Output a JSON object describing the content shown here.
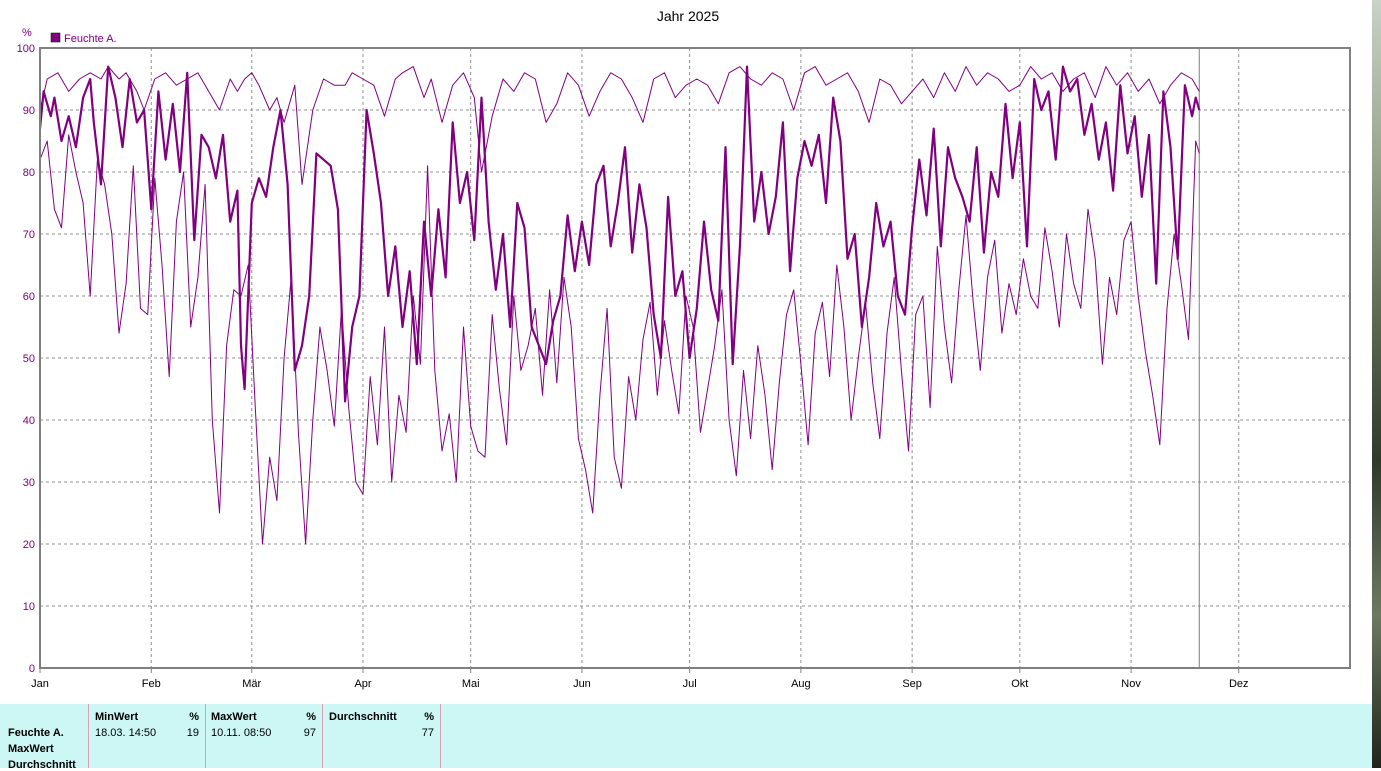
{
  "chart_data": {
    "type": "line",
    "title": "Jahr 2025",
    "ylabel": "%",
    "ylim": [
      0,
      100
    ],
    "yticks": [
      0,
      10,
      20,
      30,
      40,
      50,
      60,
      70,
      80,
      90,
      100
    ],
    "x_range_days": [
      0,
      365
    ],
    "x_months": [
      "Jan",
      "Feb",
      "Mär",
      "Apr",
      "Mai",
      "Jun",
      "Jul",
      "Aug",
      "Sep",
      "Okt",
      "Nov",
      "Dez"
    ],
    "current_date_day": 323,
    "grid": true,
    "legend": [
      {
        "name": "Feuchte A.",
        "color": "#800080"
      }
    ],
    "legend_position": "top-left",
    "series": [
      {
        "name": "max",
        "color": "#800080",
        "width": 1,
        "x": [
          0,
          2,
          5,
          8,
          11,
          14,
          17,
          19,
          22,
          24,
          27,
          29,
          32,
          35,
          38,
          41,
          44,
          47,
          50,
          53,
          55,
          57,
          59,
          61,
          64,
          66,
          68,
          71,
          73,
          76,
          79,
          82,
          85,
          87,
          90,
          93,
          96,
          99,
          101,
          104,
          107,
          109,
          112,
          115,
          118,
          121,
          123,
          126,
          129,
          132,
          135,
          138,
          141,
          144,
          147,
          150,
          153,
          156,
          159,
          162,
          165,
          168,
          171,
          174,
          177,
          180,
          183,
          186,
          189,
          192,
          195,
          198,
          201,
          204,
          207,
          210,
          213,
          216,
          219,
          222,
          225,
          228,
          231,
          234,
          237,
          240,
          243,
          246,
          249,
          252,
          255,
          258,
          261,
          264,
          267,
          270,
          273,
          276,
          279,
          282,
          285,
          288,
          291,
          294,
          297,
          300,
          303,
          306,
          309,
          312,
          315,
          318,
          321,
          323
        ],
        "y": [
          90,
          95,
          96,
          93,
          95,
          96,
          95,
          97,
          95,
          96,
          93,
          90,
          95,
          96,
          94,
          95,
          96,
          93,
          90,
          95,
          93,
          95,
          96,
          94,
          90,
          92,
          88,
          94,
          78,
          90,
          95,
          94,
          94,
          96,
          95,
          94,
          89,
          95,
          96,
          97,
          92,
          95,
          88,
          94,
          96,
          92,
          80,
          89,
          95,
          93,
          96,
          95,
          88,
          91,
          96,
          94,
          89,
          93,
          96,
          95,
          92,
          88,
          95,
          96,
          92,
          94,
          95,
          94,
          91,
          96,
          97,
          95,
          94,
          96,
          95,
          90,
          96,
          97,
          94,
          95,
          96,
          93,
          88,
          95,
          94,
          91,
          93,
          95,
          92,
          96,
          93,
          97,
          94,
          96,
          95,
          93,
          94,
          97,
          95,
          96,
          93,
          95,
          96,
          92,
          97,
          94,
          96,
          93,
          95,
          91,
          94,
          96,
          95,
          93
        ]
      },
      {
        "name": "mean",
        "color": "#800080",
        "width": 2.2,
        "x": [
          0,
          1,
          3,
          4,
          6,
          8,
          10,
          12,
          14,
          15,
          17,
          19,
          21,
          23,
          25,
          27,
          29,
          31,
          33,
          35,
          37,
          39,
          41,
          43,
          45,
          47,
          49,
          51,
          53,
          55,
          56,
          57,
          59,
          61,
          63,
          65,
          67,
          69,
          71,
          73,
          75,
          77,
          79,
          81,
          83,
          85,
          87,
          89,
          91,
          93,
          95,
          97,
          99,
          101,
          103,
          105,
          107,
          109,
          111,
          113,
          115,
          117,
          119,
          121,
          123,
          125,
          127,
          129,
          131,
          133,
          135,
          137,
          139,
          141,
          143,
          145,
          147,
          149,
          151,
          153,
          155,
          157,
          159,
          161,
          163,
          165,
          167,
          169,
          171,
          173,
          175,
          177,
          179,
          181,
          183,
          185,
          187,
          189,
          191,
          193,
          195,
          197,
          199,
          201,
          203,
          205,
          207,
          209,
          211,
          213,
          215,
          217,
          219,
          221,
          223,
          225,
          227,
          229,
          231,
          233,
          235,
          237,
          239,
          241,
          243,
          245,
          247,
          249,
          251,
          253,
          255,
          257,
          259,
          261,
          263,
          265,
          267,
          269,
          271,
          273,
          275,
          277,
          279,
          281,
          283,
          285,
          287,
          289,
          291,
          293,
          295,
          297,
          299,
          301,
          303,
          305,
          307,
          309,
          311,
          313,
          315,
          317,
          319,
          321,
          322,
          323
        ],
        "y": [
          87,
          93,
          89,
          92,
          85,
          89,
          84,
          92,
          95,
          88,
          78,
          97,
          92,
          84,
          95,
          88,
          90,
          74,
          93,
          82,
          91,
          80,
          96,
          69,
          86,
          84,
          79,
          86,
          72,
          77,
          52,
          45,
          75,
          79,
          76,
          84,
          90,
          78,
          48,
          52,
          60,
          83,
          82,
          81,
          74,
          43,
          55,
          60,
          90,
          83,
          75,
          60,
          68,
          55,
          64,
          49,
          72,
          60,
          74,
          63,
          88,
          75,
          80,
          69,
          92,
          72,
          61,
          70,
          55,
          75,
          71,
          55,
          52,
          49,
          56,
          60,
          73,
          64,
          72,
          65,
          78,
          81,
          68,
          75,
          84,
          67,
          78,
          71,
          57,
          50,
          76,
          60,
          64,
          50,
          58,
          72,
          61,
          56,
          84,
          49,
          68,
          97,
          72,
          80,
          70,
          76,
          88,
          64,
          79,
          85,
          81,
          86,
          75,
          92,
          85,
          66,
          70,
          55,
          63,
          75,
          68,
          72,
          60,
          57,
          71,
          82,
          73,
          87,
          68,
          84,
          79,
          76,
          72,
          84,
          67,
          80,
          76,
          91,
          79,
          88,
          68,
          95,
          90,
          93,
          82,
          97,
          93,
          95,
          86,
          91,
          82,
          88,
          77,
          94,
          83,
          89,
          76,
          86,
          62,
          93,
          84,
          66,
          94,
          89,
          92,
          90
        ]
      },
      {
        "name": "min",
        "color": "#800080",
        "width": 1,
        "x": [
          0,
          2,
          4,
          6,
          8,
          10,
          12,
          14,
          16,
          18,
          20,
          22,
          24,
          26,
          28,
          30,
          32,
          34,
          36,
          38,
          40,
          42,
          44,
          46,
          48,
          50,
          52,
          54,
          56,
          58,
          60,
          62,
          64,
          66,
          68,
          70,
          72,
          74,
          76,
          78,
          80,
          82,
          84,
          86,
          88,
          90,
          92,
          94,
          96,
          98,
          100,
          102,
          104,
          106,
          108,
          110,
          112,
          114,
          116,
          118,
          120,
          122,
          124,
          126,
          128,
          130,
          132,
          134,
          136,
          138,
          140,
          142,
          144,
          146,
          148,
          150,
          152,
          154,
          156,
          158,
          160,
          162,
          164,
          166,
          168,
          170,
          172,
          174,
          176,
          178,
          180,
          182,
          184,
          186,
          188,
          190,
          192,
          194,
          196,
          198,
          200,
          202,
          204,
          206,
          208,
          210,
          212,
          214,
          216,
          218,
          220,
          222,
          224,
          226,
          228,
          230,
          232,
          234,
          236,
          238,
          240,
          242,
          244,
          246,
          248,
          250,
          252,
          254,
          256,
          258,
          260,
          262,
          264,
          266,
          268,
          270,
          272,
          274,
          276,
          278,
          280,
          282,
          284,
          286,
          288,
          290,
          292,
          294,
          296,
          298,
          300,
          302,
          304,
          306,
          308,
          310,
          312,
          314,
          316,
          318,
          320,
          322,
          323
        ],
        "y": [
          82,
          85,
          74,
          71,
          86,
          80,
          75,
          60,
          82,
          78,
          70,
          54,
          62,
          81,
          58,
          57,
          79,
          65,
          47,
          72,
          80,
          55,
          63,
          78,
          40,
          25,
          52,
          61,
          60,
          65,
          42,
          20,
          34,
          27,
          50,
          63,
          38,
          20,
          40,
          55,
          48,
          39,
          58,
          42,
          30,
          28,
          47,
          36,
          55,
          30,
          44,
          38,
          60,
          49,
          81,
          48,
          35,
          41,
          30,
          55,
          39,
          35,
          34,
          57,
          45,
          36,
          60,
          48,
          52,
          58,
          44,
          61,
          46,
          63,
          55,
          37,
          32,
          25,
          44,
          58,
          34,
          29,
          47,
          40,
          53,
          59,
          44,
          56,
          48,
          41,
          60,
          55,
          38,
          45,
          52,
          61,
          40,
          31,
          48,
          37,
          52,
          44,
          32,
          46,
          57,
          61,
          49,
          36,
          54,
          59,
          47,
          65,
          55,
          40,
          50,
          59,
          46,
          37,
          54,
          63,
          48,
          35,
          57,
          60,
          42,
          68,
          55,
          46,
          61,
          73,
          59,
          48,
          63,
          69,
          54,
          62,
          57,
          66,
          60,
          58,
          71,
          64,
          55,
          70,
          62,
          58,
          74,
          66,
          49,
          63,
          57,
          69,
          72,
          60,
          51,
          44,
          36,
          58,
          70,
          62,
          53,
          85,
          83
        ]
      }
    ]
  },
  "stats": {
    "row_labels": [
      "Feuchte A.",
      "MaxWert",
      "Durchschnitt"
    ],
    "min": {
      "header": "MinWert",
      "unit": "%",
      "date": "18.03.  14:50",
      "value": "19"
    },
    "max": {
      "header": "MaxWert",
      "unit": "%",
      "date": "10.11.  08:50",
      "value": "97"
    },
    "avg": {
      "header": "Durchschnitt",
      "unit": "%",
      "value": "77"
    }
  }
}
